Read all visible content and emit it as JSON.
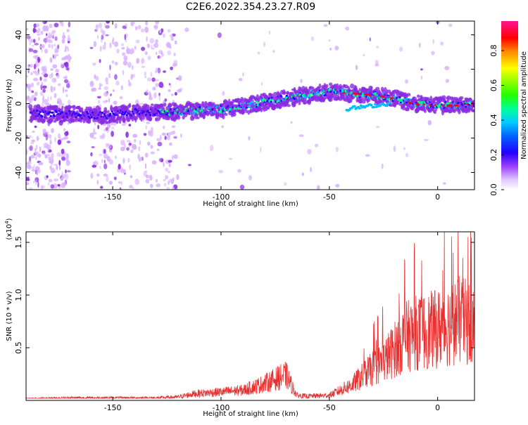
{
  "title": "C2E6.2022.354.23.27.R09",
  "colors": {
    "snr_line": "#e83030",
    "dot_low": "#d9b3ff",
    "dot_mid": "#8a2be2",
    "dot_high": "#0000ff",
    "frame": "#000000"
  },
  "chart_data": [
    {
      "type": "heatmap",
      "name": "spectrogram",
      "xlabel": "Height of straight line (km)",
      "ylabel": "Frequency (Hz)",
      "xlim": [
        -190,
        17
      ],
      "ylim": [
        -50,
        48
      ],
      "x_ticks": [
        -150,
        -100,
        -50,
        0
      ],
      "x_tick_labels": [
        "-150",
        "-100",
        "-50",
        "0"
      ],
      "y_ticks": [
        40,
        20,
        0,
        -20,
        -40
      ],
      "y_tick_labels": [
        "40",
        "20",
        "0",
        "-20",
        "-40"
      ],
      "grid": false,
      "ridge_centerline": {
        "x": [
          -185,
          -170,
          -155,
          -140,
          -125,
          -110,
          -95,
          -80,
          -65,
          -50,
          -40,
          -30,
          -20,
          -10,
          0,
          10,
          17
        ],
        "y": [
          -6,
          -6,
          -7,
          -5,
          -5,
          -4,
          -3,
          1,
          4,
          7,
          6,
          5,
          3,
          0,
          -1,
          -1,
          0
        ]
      },
      "colorbar": {
        "label": "Normalized spectral amplitude",
        "ticks": [
          0.0,
          0.2,
          0.4,
          0.6,
          0.8
        ],
        "tick_labels": [
          "0.0",
          "0.2",
          "0.4",
          "0.6",
          "0.8"
        ],
        "range": [
          0.0,
          0.97
        ],
        "colors": [
          "#ffffff",
          "#d9b3ff",
          "#8a2be2",
          "#2200ff",
          "#00bfff",
          "#00ff80",
          "#33ff00",
          "#ffff00",
          "#ff8800",
          "#ff0000",
          "#ff1493"
        ]
      }
    },
    {
      "type": "line",
      "name": "snr",
      "xlabel": "Height of straight line (km)",
      "ylabel": "SNR (10 * v/v)",
      "y_multiplier": "(x10",
      "y_multiplier_exp": "4",
      "y_multiplier_close": ")",
      "xlim": [
        -190,
        17
      ],
      "ylim": [
        0,
        1.6
      ],
      "x_ticks": [
        -150,
        -100,
        -50,
        0
      ],
      "x_tick_labels": [
        "-150",
        "-100",
        "-50",
        "0"
      ],
      "y_ticks": [
        0.5,
        1.0,
        1.5
      ],
      "y_tick_labels": [
        "0.5",
        "1.0",
        "1.5"
      ],
      "grid": false,
      "envelope_x": [
        -190,
        -170,
        -150,
        -130,
        -120,
        -112,
        -100,
        -90,
        -80,
        -70,
        -65,
        -60,
        -50,
        -45,
        -40,
        -35,
        -30,
        -25,
        -20,
        -15,
        -10,
        -5,
        0,
        5,
        10,
        17
      ],
      "envelope_y": [
        0.02,
        0.03,
        0.03,
        0.03,
        0.04,
        0.08,
        0.1,
        0.12,
        0.2,
        0.3,
        0.06,
        0.05,
        0.06,
        0.12,
        0.18,
        0.28,
        0.38,
        0.46,
        0.6,
        0.75,
        0.8,
        0.82,
        0.85,
        0.9,
        0.95,
        0.9
      ]
    }
  ]
}
